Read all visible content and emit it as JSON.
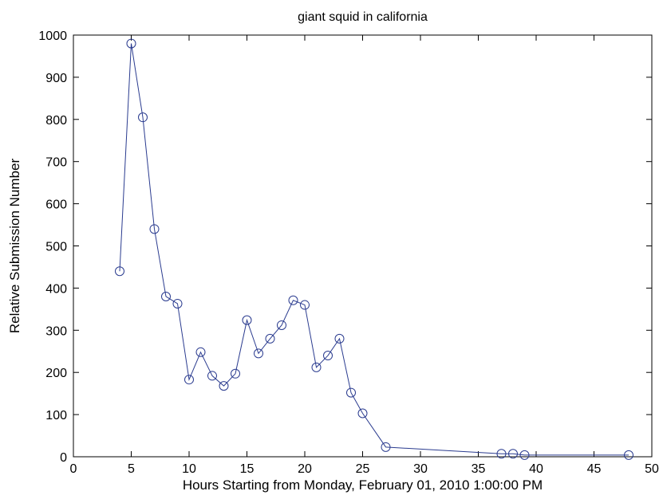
{
  "chart_data": {
    "type": "line",
    "title": "giant squid in california",
    "xlabel": "Hours Starting from Monday, February 01, 2010 1:00:00 PM",
    "ylabel": "Relative Submission Number",
    "xlim": [
      0,
      50
    ],
    "ylim": [
      0,
      1000
    ],
    "xticks": [
      0,
      5,
      10,
      15,
      20,
      25,
      30,
      35,
      40,
      45,
      50
    ],
    "yticks": [
      0,
      100,
      200,
      300,
      400,
      500,
      600,
      700,
      800,
      900,
      1000
    ],
    "grid": false,
    "marker": "circle",
    "line_color": "#2a3b8f",
    "series": [
      {
        "x": [
          4,
          5,
          6,
          7,
          8,
          9,
          10,
          11,
          12,
          13,
          14,
          15,
          16,
          17,
          18,
          19,
          20,
          21,
          22,
          23,
          24,
          25,
          27,
          37,
          38,
          39,
          48
        ],
        "y": [
          440,
          980,
          805,
          540,
          380,
          363,
          183,
          248,
          192,
          168,
          197,
          324,
          245,
          280,
          312,
          371,
          360,
          212,
          240,
          280,
          152,
          103,
          23,
          7,
          7,
          4,
          4
        ]
      }
    ]
  }
}
